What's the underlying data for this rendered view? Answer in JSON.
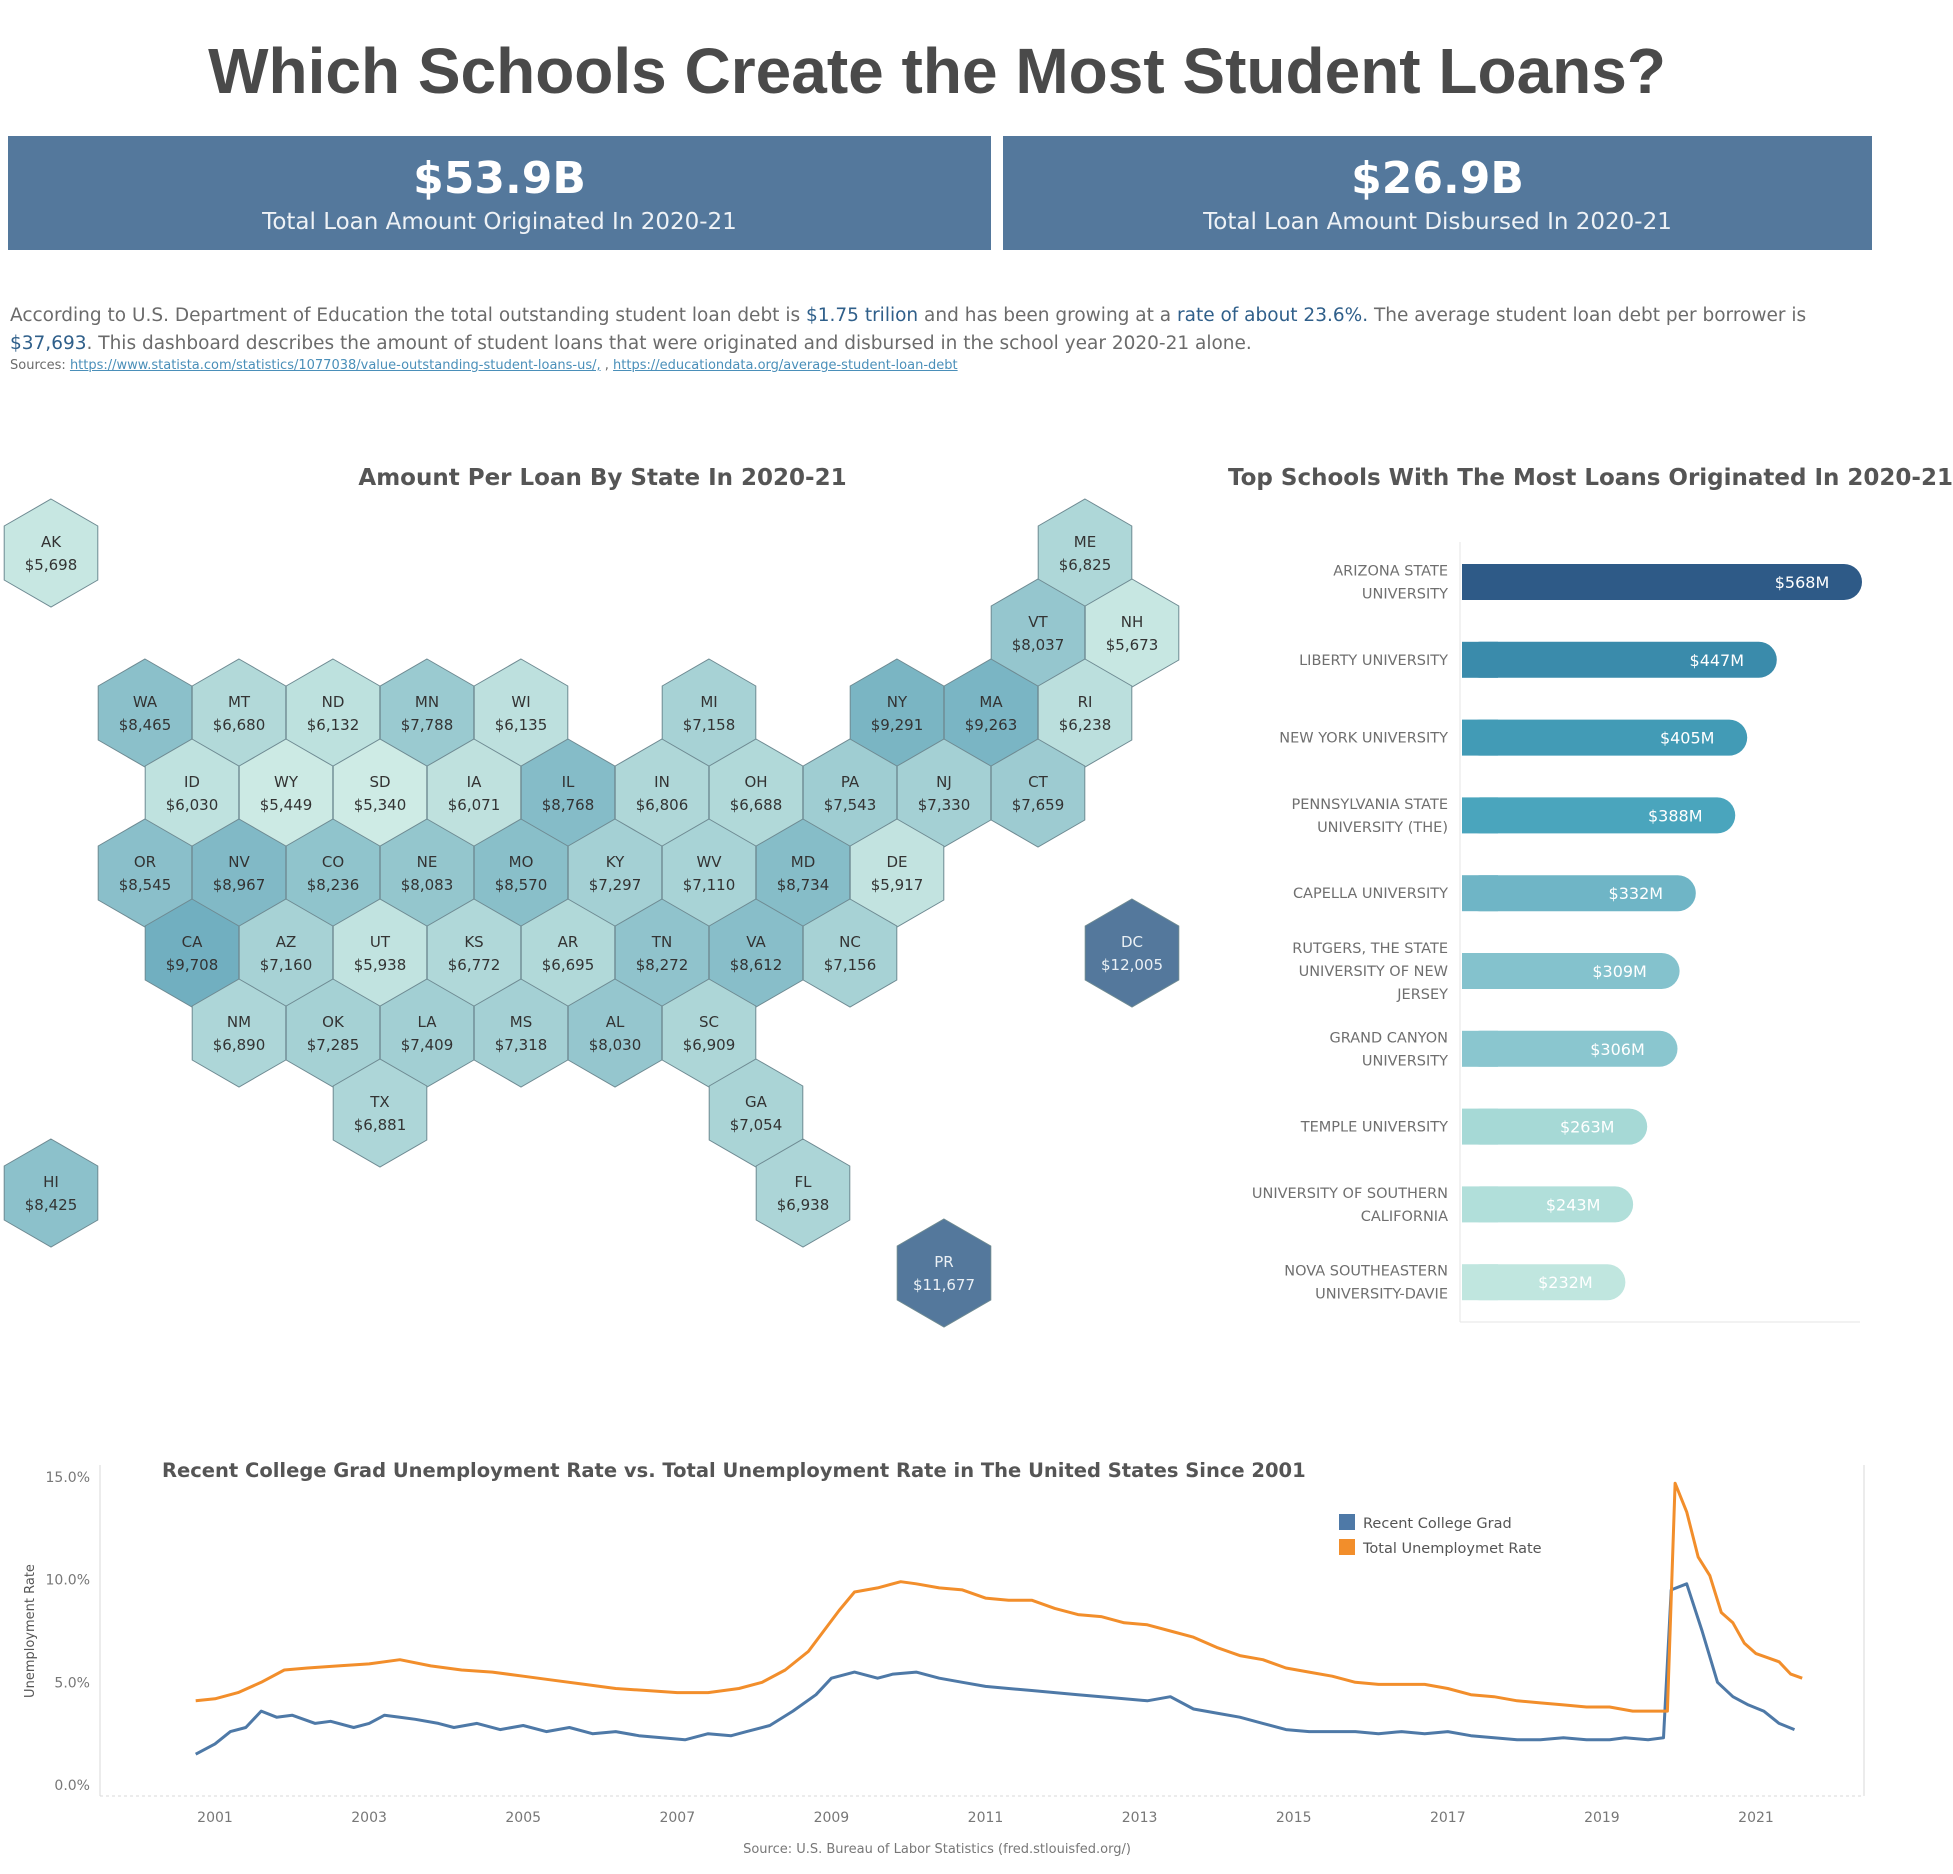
{
  "title": "Which Schools Create the Most Student Loans?",
  "kpis": [
    {
      "value": "$53.9B",
      "label": "Total Loan Amount Originated In 2020-21"
    },
    {
      "value": "$26.9B",
      "label": "Total Loan Amount Disbursed In 2020-21"
    }
  ],
  "intro": {
    "p1": "According to U.S. Department of Education the total outstanding student loan debt is ",
    "h1": "$1.75 trilion",
    "p2": " and has been growing at a ",
    "h2": "rate of about 23.6%.",
    "p3": " The average student loan debt per borrower is ",
    "h3": "$37,693",
    "p4": ". This dashboard describes the amount of student loans that were originated and disbursed in the school year 2020-21 alone."
  },
  "sources": {
    "label": "Sources: ",
    "link1": "https://www.statista.com/statistics/1077038/value-outstanding-student-loans-us/,",
    "sep": " , ",
    "link2": "https://educationdata.org/average-student-loan-debt"
  },
  "chart_data": [
    {
      "type": "heatmap",
      "title": "Amount Per Loan By State In 2020-21",
      "states": [
        {
          "code": "AK",
          "value": 5698,
          "label": "$5,698"
        },
        {
          "code": "ME",
          "value": 6825,
          "label": "$6,825"
        },
        {
          "code": "VT",
          "value": 8037,
          "label": "$8,037"
        },
        {
          "code": "NH",
          "value": 5673,
          "label": "$5,673"
        },
        {
          "code": "WA",
          "value": 8465,
          "label": "$8,465"
        },
        {
          "code": "MT",
          "value": 6680,
          "label": "$6,680"
        },
        {
          "code": "ND",
          "value": 6132,
          "label": "$6,132"
        },
        {
          "code": "MN",
          "value": 7788,
          "label": "$7,788"
        },
        {
          "code": "WI",
          "value": 6135,
          "label": "$6,135"
        },
        {
          "code": "MI",
          "value": 7158,
          "label": "$7,158"
        },
        {
          "code": "NY",
          "value": 9291,
          "label": "$9,291"
        },
        {
          "code": "MA",
          "value": 9263,
          "label": "$9,263"
        },
        {
          "code": "RI",
          "value": 6238,
          "label": "$6,238"
        },
        {
          "code": "ID",
          "value": 6030,
          "label": "$6,030"
        },
        {
          "code": "WY",
          "value": 5449,
          "label": "$5,449"
        },
        {
          "code": "SD",
          "value": 5340,
          "label": "$5,340"
        },
        {
          "code": "IA",
          "value": 6071,
          "label": "$6,071"
        },
        {
          "code": "IL",
          "value": 8768,
          "label": "$8,768"
        },
        {
          "code": "IN",
          "value": 6806,
          "label": "$6,806"
        },
        {
          "code": "OH",
          "value": 6688,
          "label": "$6,688"
        },
        {
          "code": "PA",
          "value": 7543,
          "label": "$7,543"
        },
        {
          "code": "NJ",
          "value": 7330,
          "label": "$7,330"
        },
        {
          "code": "CT",
          "value": 7659,
          "label": "$7,659"
        },
        {
          "code": "OR",
          "value": 8545,
          "label": "$8,545"
        },
        {
          "code": "NV",
          "value": 8967,
          "label": "$8,967"
        },
        {
          "code": "CO",
          "value": 8236,
          "label": "$8,236"
        },
        {
          "code": "NE",
          "value": 8083,
          "label": "$8,083"
        },
        {
          "code": "MO",
          "value": 8570,
          "label": "$8,570"
        },
        {
          "code": "KY",
          "value": 7297,
          "label": "$7,297"
        },
        {
          "code": "WV",
          "value": 7110,
          "label": "$7,110"
        },
        {
          "code": "MD",
          "value": 8734,
          "label": "$8,734"
        },
        {
          "code": "DE",
          "value": 5917,
          "label": "$5,917"
        },
        {
          "code": "CA",
          "value": 9708,
          "label": "$9,708"
        },
        {
          "code": "AZ",
          "value": 7160,
          "label": "$7,160"
        },
        {
          "code": "UT",
          "value": 5938,
          "label": "$5,938"
        },
        {
          "code": "KS",
          "value": 6772,
          "label": "$6,772"
        },
        {
          "code": "AR",
          "value": 6695,
          "label": "$6,695"
        },
        {
          "code": "TN",
          "value": 8272,
          "label": "$8,272"
        },
        {
          "code": "VA",
          "value": 8612,
          "label": "$8,612"
        },
        {
          "code": "NC",
          "value": 7156,
          "label": "$7,156"
        },
        {
          "code": "DC",
          "value": 12005,
          "label": "$12,005"
        },
        {
          "code": "NM",
          "value": 6890,
          "label": "$6,890"
        },
        {
          "code": "OK",
          "value": 7285,
          "label": "$7,285"
        },
        {
          "code": "LA",
          "value": 7409,
          "label": "$7,409"
        },
        {
          "code": "MS",
          "value": 7318,
          "label": "$7,318"
        },
        {
          "code": "AL",
          "value": 8030,
          "label": "$8,030"
        },
        {
          "code": "SC",
          "value": 6909,
          "label": "$6,909"
        },
        {
          "code": "TX",
          "value": 6881,
          "label": "$6,881"
        },
        {
          "code": "GA",
          "value": 7054,
          "label": "$7,054"
        },
        {
          "code": "HI",
          "value": 8425,
          "label": "$8,425"
        },
        {
          "code": "FL",
          "value": 6938,
          "label": "$6,938"
        },
        {
          "code": "PR",
          "value": 11677,
          "label": "$11,677"
        }
      ]
    },
    {
      "type": "bar",
      "title": "Top Schools With The Most Loans Originated In 2020-21",
      "orientation": "horizontal",
      "categories": [
        [
          "ARIZONA STATE",
          "UNIVERSITY"
        ],
        [
          "LIBERTY UNIVERSITY"
        ],
        [
          "NEW YORK UNIVERSITY"
        ],
        [
          "PENNSYLVANIA STATE",
          "UNIVERSITY (THE)"
        ],
        [
          "CAPELLA UNIVERSITY"
        ],
        [
          "RUTGERS, THE STATE",
          "UNIVERSITY OF NEW",
          "JERSEY"
        ],
        [
          "GRAND CANYON",
          "UNIVERSITY"
        ],
        [
          "TEMPLE UNIVERSITY"
        ],
        [
          "UNIVERSITY OF SOUTHERN",
          "CALIFORNIA"
        ],
        [
          "NOVA SOUTHEASTERN",
          "UNIVERSITY-DAVIE"
        ]
      ],
      "values": [
        568,
        447,
        405,
        388,
        332,
        309,
        306,
        263,
        243,
        232
      ],
      "value_labels": [
        "$568M",
        "$447M",
        "$405M",
        "$388M",
        "$332M",
        "$309M",
        "$306M",
        "$263M",
        "$243M",
        "$232M"
      ],
      "unit": "$M",
      "colors": [
        "#2e5a87",
        "#3a8bab",
        "#429bb6",
        "#4aa5bd",
        "#6fb5c6",
        "#84c2cd",
        "#8ac6cf",
        "#a6d9d6",
        "#b1dfda",
        "#c0e6df"
      ]
    },
    {
      "type": "line",
      "title": "Recent College Grad Unemployment Rate vs. Total Unemployment Rate in The United States Since 2001",
      "ylabel": "Unemployment Rate",
      "xlabel": "",
      "ylim": [
        0,
        15
      ],
      "yticks": [
        "15.0%",
        "10.0%",
        "5.0%",
        "0.0%"
      ],
      "xticks": [
        "2001",
        "2003",
        "2005",
        "2007",
        "2009",
        "2011",
        "2013",
        "2015",
        "2017",
        "2019",
        "2021"
      ],
      "grid": false,
      "legend": "top-right",
      "series": [
        {
          "name": "Recent College Grad",
          "color": "#4e79a7",
          "points": [
            [
              2000.75,
              1.5
            ],
            [
              2001.0,
              2.0
            ],
            [
              2001.2,
              2.6
            ],
            [
              2001.4,
              2.8
            ],
            [
              2001.6,
              3.6
            ],
            [
              2001.8,
              3.3
            ],
            [
              2002.0,
              3.4
            ],
            [
              2002.3,
              3.0
            ],
            [
              2002.5,
              3.1
            ],
            [
              2002.8,
              2.8
            ],
            [
              2003.0,
              3.0
            ],
            [
              2003.2,
              3.4
            ],
            [
              2003.4,
              3.3
            ],
            [
              2003.6,
              3.2
            ],
            [
              2003.9,
              3.0
            ],
            [
              2004.1,
              2.8
            ],
            [
              2004.4,
              3.0
            ],
            [
              2004.7,
              2.7
            ],
            [
              2005.0,
              2.9
            ],
            [
              2005.3,
              2.6
            ],
            [
              2005.6,
              2.8
            ],
            [
              2005.9,
              2.5
            ],
            [
              2006.2,
              2.6
            ],
            [
              2006.5,
              2.4
            ],
            [
              2006.8,
              2.3
            ],
            [
              2007.1,
              2.2
            ],
            [
              2007.4,
              2.5
            ],
            [
              2007.7,
              2.4
            ],
            [
              2007.9,
              2.6
            ],
            [
              2008.2,
              2.9
            ],
            [
              2008.5,
              3.6
            ],
            [
              2008.8,
              4.4
            ],
            [
              2009.0,
              5.2
            ],
            [
              2009.3,
              5.5
            ],
            [
              2009.6,
              5.2
            ],
            [
              2009.8,
              5.4
            ],
            [
              2010.1,
              5.5
            ],
            [
              2010.4,
              5.2
            ],
            [
              2010.7,
              5.0
            ],
            [
              2011.0,
              4.8
            ],
            [
              2011.3,
              4.7
            ],
            [
              2011.6,
              4.6
            ],
            [
              2011.9,
              4.5
            ],
            [
              2012.2,
              4.4
            ],
            [
              2012.5,
              4.3
            ],
            [
              2012.8,
              4.2
            ],
            [
              2013.1,
              4.1
            ],
            [
              2013.4,
              4.3
            ],
            [
              2013.7,
              3.7
            ],
            [
              2014.0,
              3.5
            ],
            [
              2014.3,
              3.3
            ],
            [
              2014.6,
              3.0
            ],
            [
              2014.9,
              2.7
            ],
            [
              2015.2,
              2.6
            ],
            [
              2015.5,
              2.6
            ],
            [
              2015.8,
              2.6
            ],
            [
              2016.1,
              2.5
            ],
            [
              2016.4,
              2.6
            ],
            [
              2016.7,
              2.5
            ],
            [
              2017.0,
              2.6
            ],
            [
              2017.3,
              2.4
            ],
            [
              2017.6,
              2.3
            ],
            [
              2017.9,
              2.2
            ],
            [
              2018.2,
              2.2
            ],
            [
              2018.5,
              2.3
            ],
            [
              2018.8,
              2.2
            ],
            [
              2019.1,
              2.2
            ],
            [
              2019.3,
              2.3
            ],
            [
              2019.6,
              2.2
            ],
            [
              2019.8,
              2.3
            ],
            [
              2019.9,
              9.5
            ],
            [
              2020.1,
              9.8
            ],
            [
              2020.3,
              7.5
            ],
            [
              2020.5,
              5.0
            ],
            [
              2020.7,
              4.3
            ],
            [
              2020.9,
              3.9
            ],
            [
              2021.1,
              3.6
            ],
            [
              2021.3,
              3.0
            ],
            [
              2021.5,
              2.7
            ]
          ]
        },
        {
          "name": "Total Unemploymet Rate",
          "color": "#f28e2b",
          "points": [
            [
              2000.75,
              4.1
            ],
            [
              2001.0,
              4.2
            ],
            [
              2001.3,
              4.5
            ],
            [
              2001.6,
              5.0
            ],
            [
              2001.9,
              5.6
            ],
            [
              2002.2,
              5.7
            ],
            [
              2002.6,
              5.8
            ],
            [
              2003.0,
              5.9
            ],
            [
              2003.4,
              6.1
            ],
            [
              2003.8,
              5.8
            ],
            [
              2004.2,
              5.6
            ],
            [
              2004.6,
              5.5
            ],
            [
              2005.0,
              5.3
            ],
            [
              2005.4,
              5.1
            ],
            [
              2005.8,
              4.9
            ],
            [
              2006.2,
              4.7
            ],
            [
              2006.6,
              4.6
            ],
            [
              2007.0,
              4.5
            ],
            [
              2007.4,
              4.5
            ],
            [
              2007.8,
              4.7
            ],
            [
              2008.1,
              5.0
            ],
            [
              2008.4,
              5.6
            ],
            [
              2008.7,
              6.5
            ],
            [
              2008.9,
              7.5
            ],
            [
              2009.1,
              8.5
            ],
            [
              2009.3,
              9.4
            ],
            [
              2009.6,
              9.6
            ],
            [
              2009.9,
              9.9
            ],
            [
              2010.1,
              9.8
            ],
            [
              2010.4,
              9.6
            ],
            [
              2010.7,
              9.5
            ],
            [
              2011.0,
              9.1
            ],
            [
              2011.3,
              9.0
            ],
            [
              2011.6,
              9.0
            ],
            [
              2011.9,
              8.6
            ],
            [
              2012.2,
              8.3
            ],
            [
              2012.5,
              8.2
            ],
            [
              2012.8,
              7.9
            ],
            [
              2013.1,
              7.8
            ],
            [
              2013.4,
              7.5
            ],
            [
              2013.7,
              7.2
            ],
            [
              2014.0,
              6.7
            ],
            [
              2014.3,
              6.3
            ],
            [
              2014.6,
              6.1
            ],
            [
              2014.9,
              5.7
            ],
            [
              2015.2,
              5.5
            ],
            [
              2015.5,
              5.3
            ],
            [
              2015.8,
              5.0
            ],
            [
              2016.1,
              4.9
            ],
            [
              2016.4,
              4.9
            ],
            [
              2016.7,
              4.9
            ],
            [
              2017.0,
              4.7
            ],
            [
              2017.3,
              4.4
            ],
            [
              2017.6,
              4.3
            ],
            [
              2017.9,
              4.1
            ],
            [
              2018.2,
              4.0
            ],
            [
              2018.5,
              3.9
            ],
            [
              2018.8,
              3.8
            ],
            [
              2019.1,
              3.8
            ],
            [
              2019.4,
              3.6
            ],
            [
              2019.7,
              3.6
            ],
            [
              2019.85,
              3.6
            ],
            [
              2019.95,
              14.7
            ],
            [
              2020.1,
              13.3
            ],
            [
              2020.25,
              11.1
            ],
            [
              2020.4,
              10.2
            ],
            [
              2020.55,
              8.4
            ],
            [
              2020.7,
              7.9
            ],
            [
              2020.85,
              6.9
            ],
            [
              2021.0,
              6.4
            ],
            [
              2021.15,
              6.2
            ],
            [
              2021.3,
              6.0
            ],
            [
              2021.45,
              5.4
            ],
            [
              2021.6,
              5.2
            ]
          ]
        }
      ]
    }
  ],
  "line_footer": "Source: U.S. Bureau of Labor Statistics (fred.stlouisfed.org/)"
}
